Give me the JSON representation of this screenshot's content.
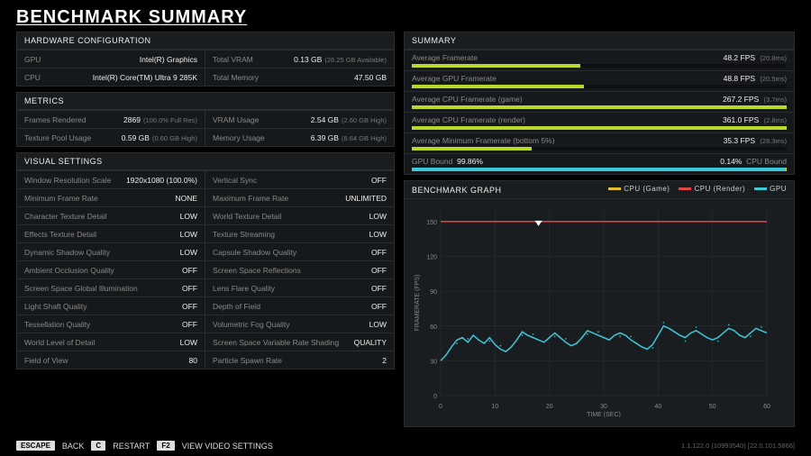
{
  "title": "BENCHMARK SUMMARY",
  "colors": {
    "green": "#b9d926",
    "yellow": "#e6c229",
    "red": "#e04848",
    "cyan": "#3dc8d8",
    "panel": "#1a1d1f",
    "grid": "#2e3234"
  },
  "hardware": {
    "header": "HARDWARE CONFIGURATION",
    "rows": [
      {
        "l1": "GPU",
        "v1": "Intel(R) Graphics",
        "l2": "Total VRAM",
        "v2": "0.13 GB",
        "s2": "(26.25 GB Available)"
      },
      {
        "l1": "CPU",
        "v1": "Intel(R) Core(TM) Ultra 9 285K",
        "l2": "Total Memory",
        "v2": "47.50 GB",
        "s2": ""
      }
    ]
  },
  "metrics": {
    "header": "METRICS",
    "rows": [
      {
        "l1": "Frames Rendered",
        "v1": "2869",
        "s1": "(100.0% Full Res)",
        "l2": "VRAM Usage",
        "v2": "2.54 GB",
        "s2": "(2.60 GB High)"
      },
      {
        "l1": "Texture Pool Usage",
        "v1": "0.59 GB",
        "s1": "(0.60 GB High)",
        "l2": "Memory Usage",
        "v2": "6.39 GB",
        "s2": "(6.64 GB High)"
      }
    ]
  },
  "visual": {
    "header": "VISUAL SETTINGS",
    "rows": [
      {
        "l1": "Window Resolution Scale",
        "v1": "1920x1080 (100.0%)",
        "l2": "Vertical Sync",
        "v2": "OFF"
      },
      {
        "l1": "Minimum Frame Rate",
        "v1": "NONE",
        "l2": "Maximum Frame Rate",
        "v2": "UNLIMITED"
      },
      {
        "l1": "Character Texture Detail",
        "v1": "LOW",
        "l2": "World Texture Detail",
        "v2": "LOW"
      },
      {
        "l1": "Effects Texture Detail",
        "v1": "LOW",
        "l2": "Texture Streaming",
        "v2": "LOW"
      },
      {
        "l1": "Dynamic Shadow Quality",
        "v1": "LOW",
        "l2": "Capsule Shadow Quality",
        "v2": "OFF"
      },
      {
        "l1": "Ambient Occlusion Quality",
        "v1": "OFF",
        "l2": "Screen Space Reflections",
        "v2": "OFF"
      },
      {
        "l1": "Screen Space Global Illumination",
        "v1": "OFF",
        "l2": "Lens Flare Quality",
        "v2": "OFF"
      },
      {
        "l1": "Light Shaft Quality",
        "v1": "OFF",
        "l2": "Depth of Field",
        "v2": "OFF"
      },
      {
        "l1": "Tessellation Quality",
        "v1": "OFF",
        "l2": "Volumetric Fog Quality",
        "v2": "LOW"
      },
      {
        "l1": "World Level of Detail",
        "v1": "LOW",
        "l2": "Screen Space Variable Rate Shading",
        "v2": "QUALITY"
      },
      {
        "l1": "Field of View",
        "v1": "80",
        "l2": "Particle Spawn Rate",
        "v2": "2"
      }
    ]
  },
  "summary": {
    "header": "SUMMARY",
    "items": [
      {
        "label": "Average Framerate",
        "value": "48.2 FPS",
        "sub": "(20.8ms)",
        "pct": 45,
        "color": "#b9d926"
      },
      {
        "label": "Average GPU Framerate",
        "value": "48.8 FPS",
        "sub": "(20.5ms)",
        "pct": 46,
        "color": "#b9d926"
      },
      {
        "label": "Average CPU Framerate (game)",
        "value": "267.2 FPS",
        "sub": "(3.7ms)",
        "pct": 100,
        "color": "#b9d926"
      },
      {
        "label": "Average CPU Framerate (render)",
        "value": "361.0 FPS",
        "sub": "(2.8ms)",
        "pct": 100,
        "color": "#b9d926"
      },
      {
        "label": "Average Minimum Framerate (bottom 5%)",
        "value": "35.3 FPS",
        "sub": "(28.3ms)",
        "pct": 32,
        "color": "#b9d926"
      }
    ],
    "bound": {
      "gpu_label": "GPU Bound",
      "gpu_pct": "99.86%",
      "gpu_w": 99.86,
      "cpu_pct": "0.14%",
      "cpu_label": "CPU Bound",
      "gpu_color": "#3dc8d8",
      "cpu_color": "#e6c229"
    }
  },
  "graph": {
    "header": "BENCHMARK GRAPH",
    "legend": [
      {
        "label": "CPU (Game)",
        "color": "#e6c229"
      },
      {
        "label": "CPU (Render)",
        "color": "#e04848"
      },
      {
        "label": "GPU",
        "color": "#3dc8d8"
      }
    ],
    "xlabel": "TIME (SEC)",
    "ylabel": "FRAMERATE (FPS)",
    "xlim": [
      0,
      60
    ],
    "ylim": [
      0,
      160
    ],
    "xticks": [
      0,
      10,
      20,
      30,
      40,
      50,
      60
    ],
    "yticks": [
      0,
      30,
      60,
      90,
      120,
      150
    ],
    "cpu_render_y": 150,
    "gpu_series": [
      30,
      35,
      42,
      48,
      50,
      46,
      52,
      48,
      45,
      50,
      44,
      40,
      38,
      42,
      48,
      55,
      52,
      50,
      48,
      46,
      50,
      54,
      50,
      46,
      43,
      45,
      50,
      56,
      54,
      52,
      50,
      48,
      52,
      54,
      52,
      48,
      45,
      42,
      40,
      44,
      52,
      60,
      58,
      55,
      52,
      50,
      54,
      56,
      53,
      50,
      48,
      50,
      54,
      58,
      56,
      52,
      50,
      54,
      58,
      56,
      54
    ]
  },
  "footer": {
    "k1": "ESCAPE",
    "t1": "BACK",
    "k2": "C",
    "t2": "RESTART",
    "k3": "F2",
    "t3": "VIEW VIDEO SETTINGS",
    "version": "1.1.122.0 (10993540) [22.0.101.5866]"
  }
}
